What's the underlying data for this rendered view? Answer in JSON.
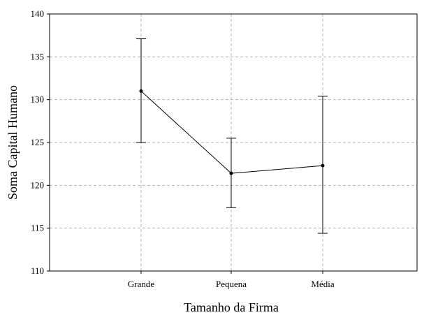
{
  "chart_data": {
    "type": "line",
    "title": "",
    "xlabel": "Tamanho da Firma",
    "ylabel": "Soma Capital Humano",
    "categories": [
      "Grande",
      "Pequena",
      "Média"
    ],
    "series": [
      {
        "values": [
          131.0,
          121.4,
          122.3
        ],
        "error_low": [
          125.0,
          117.4,
          114.4
        ],
        "error_high": [
          137.1,
          125.5,
          130.4
        ]
      }
    ],
    "ylim": [
      110,
      140
    ],
    "yticks": [
      "110",
      "115",
      "120",
      "125",
      "130",
      "135",
      "140"
    ],
    "grid": true,
    "legend": "none",
    "line_color": "#000000",
    "grid_color": "#b4b4b4"
  }
}
